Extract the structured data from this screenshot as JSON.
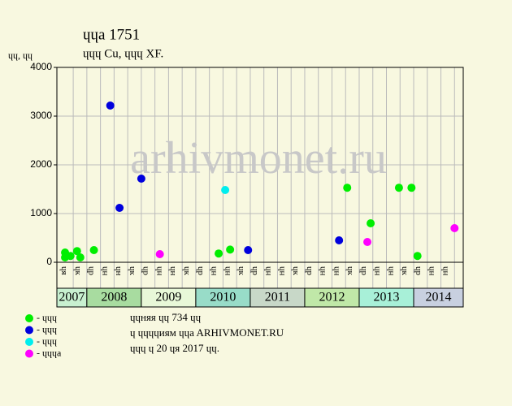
{
  "chart_data": {
    "type": "scatter",
    "title": "ɥɥa 1751",
    "subtitle": "ɥɥɥ Cu, ɥɥɥ XF.",
    "y_label": "ɥɥ, ɥɥ",
    "watermark": "arhivmonet.ru",
    "xlim": [
      2007.45,
      2014.91
    ],
    "ylim": [
      0,
      4000
    ],
    "yticks": [
      0,
      1000,
      2000,
      3000,
      4000
    ],
    "grid": true,
    "columns": [
      {
        "value": 2007.625,
        "label": "ɥя"
      },
      {
        "value": 2007.875,
        "label": "ɥк"
      },
      {
        "value": 2008.125,
        "label": "ɥp"
      },
      {
        "value": 2008.375,
        "label": "ɥн"
      },
      {
        "value": 2008.625,
        "label": "ɥн"
      },
      {
        "value": 2008.875,
        "label": "ɥк"
      },
      {
        "value": 2009.125,
        "label": "ɥp"
      },
      {
        "value": 2009.375,
        "label": "ɥн"
      },
      {
        "value": 2009.625,
        "label": "ɥн"
      },
      {
        "value": 2009.875,
        "label": "ɥк"
      },
      {
        "value": 2010.125,
        "label": "ɥp"
      },
      {
        "value": 2010.375,
        "label": "ɥн"
      },
      {
        "value": 2010.625,
        "label": "ɥн"
      },
      {
        "value": 2010.875,
        "label": "ɥк"
      },
      {
        "value": 2011.125,
        "label": "ɥp"
      },
      {
        "value": 2011.375,
        "label": "ɥн"
      },
      {
        "value": 2011.625,
        "label": "ɥн"
      },
      {
        "value": 2011.875,
        "label": "ɥк"
      },
      {
        "value": 2012.125,
        "label": "ɥp"
      },
      {
        "value": 2012.375,
        "label": "ɥн"
      },
      {
        "value": 2012.625,
        "label": "ɥн"
      },
      {
        "value": 2012.875,
        "label": "ɥк"
      },
      {
        "value": 2013.125,
        "label": "ɥp"
      },
      {
        "value": 2013.375,
        "label": "ɥн"
      },
      {
        "value": 2013.625,
        "label": "ɥн"
      },
      {
        "value": 2013.875,
        "label": "ɥк"
      },
      {
        "value": 2014.125,
        "label": "ɥp"
      },
      {
        "value": 2014.375,
        "label": "ɥн"
      },
      {
        "value": 2014.625,
        "label": "ɥн"
      }
    ],
    "years": [
      {
        "label": "2007",
        "color": "#c8f0d0"
      },
      {
        "label": "2008",
        "color": "#a8dca0"
      },
      {
        "label": "2009",
        "color": "#e8f8d8"
      },
      {
        "label": "2010",
        "color": "#98dcc8"
      },
      {
        "label": "2011",
        "color": "#c8d8c8"
      },
      {
        "label": "2012",
        "color": "#c0e8a8"
      },
      {
        "label": "2013",
        "color": "#a8f0d8"
      },
      {
        "label": "2014",
        "color": "#c8d0e0"
      }
    ],
    "series": [
      {
        "name": "- ɥɥɥ",
        "color": "#00ee00",
        "x": [
          2007.6,
          2007.6,
          2007.7,
          2007.82,
          2007.88,
          2008.13,
          2010.42,
          2010.63,
          2012.78,
          2013.21,
          2013.73,
          2013.96,
          2014.07
        ],
        "values": [
          200,
          100,
          130,
          230,
          100,
          250,
          180,
          260,
          1530,
          800,
          1530,
          1530,
          130
        ]
      },
      {
        "name": "- ɥɥɥ",
        "color": "#0000dd",
        "x": [
          2008.43,
          2008.6,
          2009.0,
          2010.96,
          2012.63
        ],
        "values": [
          3217,
          1117,
          1717,
          250,
          450
        ]
      },
      {
        "name": "- ɥɥɥ",
        "color": "#00eeee",
        "x": [
          2010.54
        ],
        "values": [
          1483
        ]
      },
      {
        "name": "- ɥɥɥa",
        "color": "#ff00ff",
        "x": [
          2009.34,
          2013.15,
          2014.75
        ],
        "values": [
          167,
          417,
          700
        ]
      }
    ],
    "notes": [
      "ɥɥняя ɥɥ 734 ɥɥ",
      "ɥ ɥɥɥɥиям ɥɥa ARHIVMONET.RU",
      "ɥɥɥ ɥ 20 ɥя 2017 ɥɥ."
    ]
  }
}
